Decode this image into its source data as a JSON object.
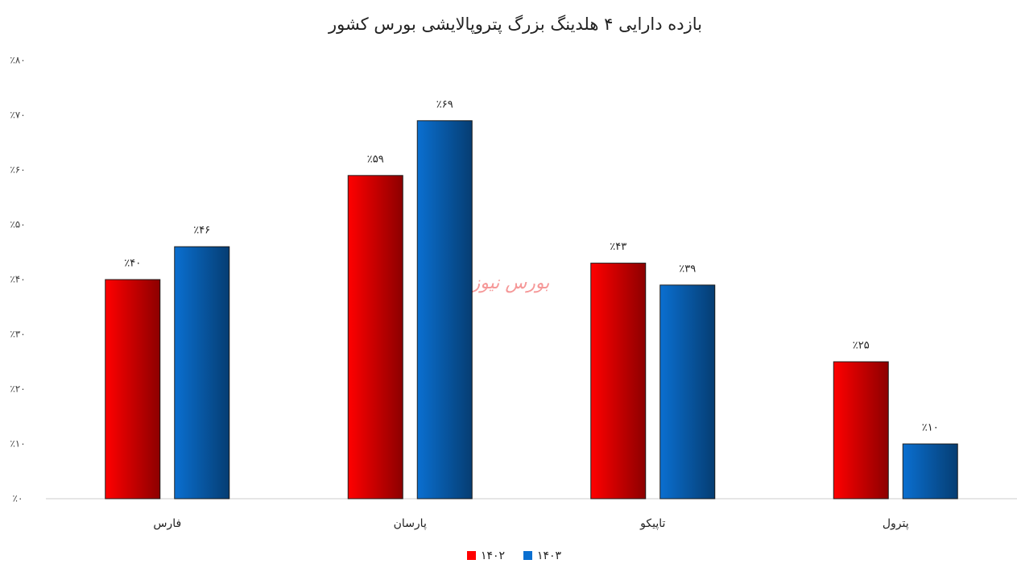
{
  "chart_data": {
    "type": "bar",
    "title": "بازده دارایی ۴ هلدینگ بزرگ پتروپالایشی بورس کشور",
    "watermark": "بورس نیوز",
    "categories": [
      "فارس",
      "پارسان",
      "تاپیکو",
      "پترول"
    ],
    "series": [
      {
        "name": "۱۴۰۲",
        "color": "#ff0000",
        "values": [
          40,
          59,
          43,
          25
        ],
        "value_labels": [
          "٪۴۰",
          "٪۵۹",
          "٪۴۳",
          "٪۲۵"
        ]
      },
      {
        "name": "۱۴۰۳",
        "color": "#0a6fd0",
        "values": [
          46,
          69,
          39,
          10
        ],
        "value_labels": [
          "٪۴۶",
          "٪۶۹",
          "٪۳۹",
          "٪۱۰"
        ]
      }
    ],
    "ylim": [
      0,
      80
    ],
    "yticks": [
      {
        "value": 0,
        "label": "٪۰"
      },
      {
        "value": 10,
        "label": "٪۱۰"
      },
      {
        "value": 20,
        "label": "٪۲۰"
      },
      {
        "value": 30,
        "label": "٪۳۰"
      },
      {
        "value": 40,
        "label": "٪۴۰"
      },
      {
        "value": 50,
        "label": "٪۵۰"
      },
      {
        "value": 60,
        "label": "٪۶۰"
      },
      {
        "value": 70,
        "label": "٪۷۰"
      },
      {
        "value": 80,
        "label": "٪۸۰"
      }
    ],
    "grid": false,
    "legend": "bottom"
  }
}
